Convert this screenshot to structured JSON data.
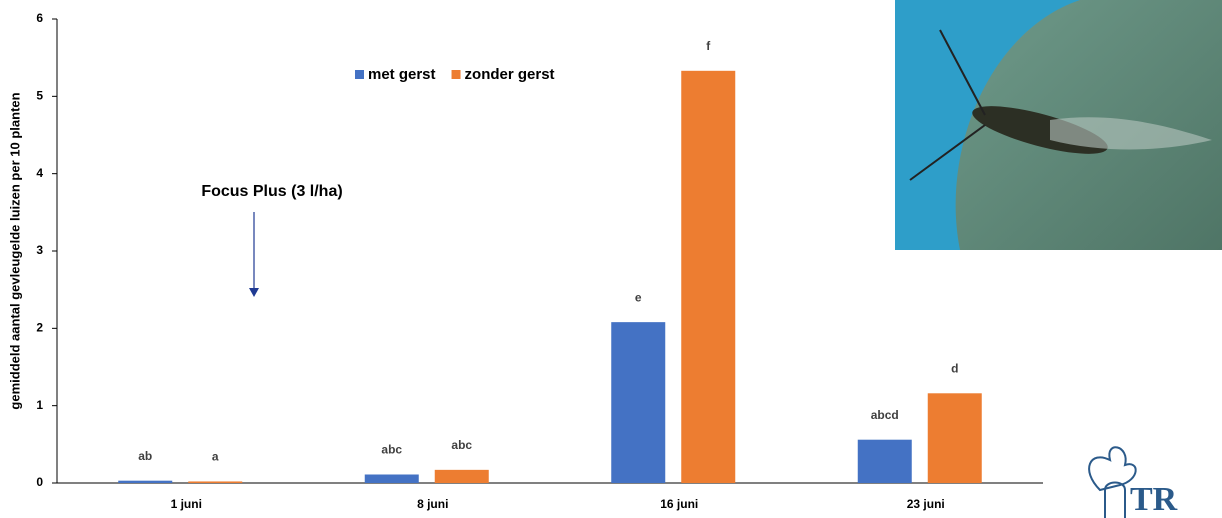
{
  "chart_data": {
    "type": "bar",
    "y_label": "gemiddeld aantal gevleugelde luizen per 10 planten",
    "categories": [
      "1 juni",
      "8 juni",
      "16 juni",
      "23 juni"
    ],
    "series": [
      {
        "name": "met gerst",
        "color": "#4472c4",
        "values": [
          0.03,
          0.11,
          2.08,
          0.56
        ],
        "letters": [
          "ab",
          "abc",
          "e",
          "abcd"
        ]
      },
      {
        "name": "zonder gerst",
        "color": "#ed7d31",
        "values": [
          0.02,
          0.17,
          5.33,
          1.16
        ],
        "letters": [
          "a",
          "abc",
          "f",
          "d"
        ]
      }
    ],
    "ylim": [
      0,
      6
    ],
    "yticks": [
      0,
      1,
      2,
      3,
      4,
      5,
      6
    ],
    "annotation": "Focus Plus (3 l/ha)",
    "logo_text": "TR"
  }
}
